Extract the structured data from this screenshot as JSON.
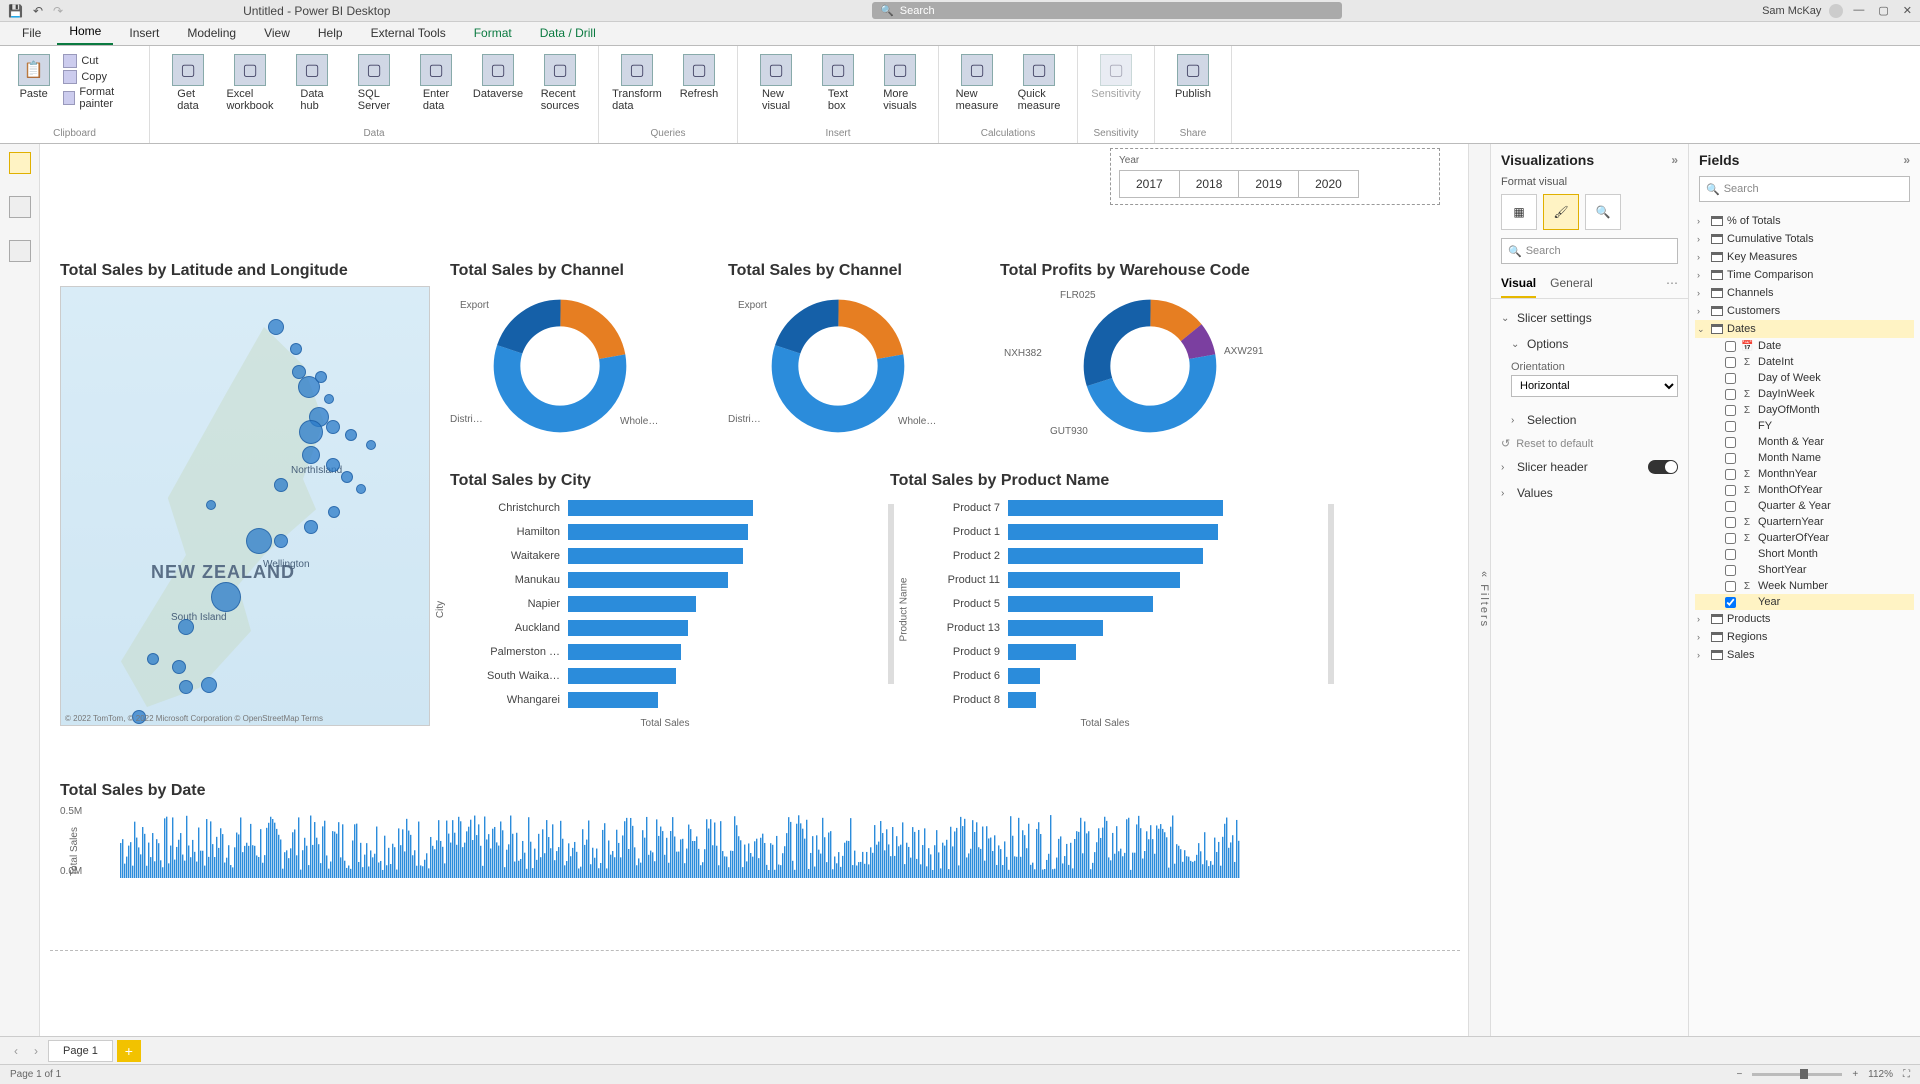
{
  "title": "Untitled - Power BI Desktop",
  "search_placeholder": "Search",
  "user": "Sam McKay",
  "menu": [
    "File",
    "Home",
    "Insert",
    "Modeling",
    "View",
    "Help",
    "External Tools",
    "Format",
    "Data / Drill"
  ],
  "menu_active": 1,
  "clipboard": {
    "paste": "Paste",
    "cut": "Cut",
    "copy": "Copy",
    "fp": "Format painter",
    "label": "Clipboard"
  },
  "data_grp": {
    "items": [
      "Get data",
      "Excel workbook",
      "Data hub",
      "SQL Server",
      "Enter data",
      "Dataverse",
      "Recent sources"
    ],
    "label": "Data"
  },
  "queries": {
    "items": [
      "Transform data",
      "Refresh"
    ],
    "label": "Queries"
  },
  "insert": {
    "items": [
      "New visual",
      "Text box",
      "More visuals"
    ],
    "label": "Insert"
  },
  "calc": {
    "items": [
      "New measure",
      "Quick measure"
    ],
    "label": "Calculations"
  },
  "sens": {
    "items": [
      "Sensitivity"
    ],
    "label": "Sensitivity"
  },
  "share": {
    "items": [
      "Publish"
    ],
    "label": "Share"
  },
  "slicer": {
    "label": "Year",
    "years": [
      "2017",
      "2018",
      "2019",
      "2020"
    ]
  },
  "map": {
    "title": "Total Sales by Latitude and Longitude",
    "nz": "NEW ZEALAND",
    "north": "NorthIsland",
    "south": "South Island",
    "wlg": "Wellington",
    "foot": "© 2022 TomTom, © 2022 Microsoft Corporation  © OpenStreetMap   Terms",
    "bubbles": [
      [
        215,
        40,
        16
      ],
      [
        235,
        62,
        12
      ],
      [
        238,
        85,
        14
      ],
      [
        248,
        100,
        22
      ],
      [
        260,
        90,
        12
      ],
      [
        268,
        112,
        10
      ],
      [
        258,
        130,
        20
      ],
      [
        250,
        145,
        24
      ],
      [
        272,
        140,
        14
      ],
      [
        290,
        148,
        12
      ],
      [
        310,
        158,
        10
      ],
      [
        250,
        168,
        18
      ],
      [
        272,
        178,
        14
      ],
      [
        220,
        198,
        14
      ],
      [
        286,
        190,
        12
      ],
      [
        300,
        202,
        10
      ],
      [
        150,
        218,
        10
      ],
      [
        198,
        254,
        26
      ],
      [
        220,
        254,
        14
      ],
      [
        250,
        240,
        14
      ],
      [
        273,
        225,
        12
      ],
      [
        165,
        310,
        30
      ],
      [
        125,
        340,
        16
      ],
      [
        92,
        372,
        12
      ],
      [
        118,
        380,
        14
      ],
      [
        125,
        400,
        14
      ],
      [
        148,
        398,
        16
      ],
      [
        78,
        430,
        14
      ]
    ]
  },
  "donut1": {
    "title": "Total Sales by Channel",
    "labels": [
      "Export",
      "Whole…",
      "Distri…"
    ],
    "slices": [
      [
        22,
        "#e67e22"
      ],
      [
        58,
        "#2b8cdb"
      ],
      [
        20,
        "#1560a8"
      ]
    ]
  },
  "donut2": {
    "title": "Total Sales by Channel",
    "labels": [
      "Export",
      "Whole…",
      "Distri…"
    ],
    "slices": [
      [
        22,
        "#e67e22"
      ],
      [
        58,
        "#2b8cdb"
      ],
      [
        20,
        "#1560a8"
      ]
    ]
  },
  "donut3": {
    "title": "Total Profits by Warehouse Code",
    "labels": [
      "FLR025",
      "AXW291",
      "GUT930",
      "NXH382"
    ],
    "slices": [
      [
        14,
        "#e67e22"
      ],
      [
        8,
        "#7b3fa0"
      ],
      [
        48,
        "#2b8cdb"
      ],
      [
        30,
        "#1560a8"
      ]
    ]
  },
  "city": {
    "title": "Total Sales by City",
    "axis": "Total Sales",
    "vaxis": "City",
    "rows": [
      [
        "Christchurch",
        185
      ],
      [
        "Hamilton",
        180
      ],
      [
        "Waitakere",
        175
      ],
      [
        "Manukau",
        160
      ],
      [
        "Napier",
        128
      ],
      [
        "Auckland",
        120
      ],
      [
        "Palmerston …",
        113
      ],
      [
        "South Waika…",
        108
      ],
      [
        "Whangarei",
        90
      ]
    ]
  },
  "product": {
    "title": "Total Sales by Product Name",
    "axis": "Total Sales",
    "vaxis": "Product Name",
    "rows": [
      [
        "Product 7",
        215
      ],
      [
        "Product 1",
        210
      ],
      [
        "Product 2",
        195
      ],
      [
        "Product 11",
        172
      ],
      [
        "Product 5",
        145
      ],
      [
        "Product 13",
        95
      ],
      [
        "Product 9",
        68
      ],
      [
        "Product 6",
        32
      ],
      [
        "Product 8",
        28
      ]
    ]
  },
  "dates": {
    "title": "Total Sales by Date",
    "ymax": "0.5M",
    "ymin": "0.0M",
    "vaxis": "Total Sales"
  },
  "viz": {
    "title": "Visualizations",
    "sub": "Format visual",
    "search": "Search",
    "tabs": [
      "Visual",
      "General"
    ],
    "tab_on": 0,
    "s1": "Slicer settings",
    "s2": "Options",
    "orientation_label": "Orientation",
    "orientation": "Horizontal",
    "s3": "Selection",
    "reset": "Reset to default",
    "s4": "Slicer header",
    "s5": "Values"
  },
  "fields": {
    "title": "Fields",
    "search": "Search",
    "tables": [
      {
        "name": "% of Totals",
        "exp": false
      },
      {
        "name": "Cumulative Totals",
        "exp": false
      },
      {
        "name": "Key Measures",
        "exp": false
      },
      {
        "name": "Time Comparison",
        "exp": false
      },
      {
        "name": "Channels",
        "exp": false
      },
      {
        "name": "Customers",
        "exp": false
      },
      {
        "name": "Dates",
        "exp": true,
        "fields": [
          {
            "name": "Date",
            "sigma": false,
            "cal": true
          },
          {
            "name": "DateInt",
            "sigma": true
          },
          {
            "name": "Day of Week",
            "sigma": false
          },
          {
            "name": "DayInWeek",
            "sigma": true
          },
          {
            "name": "DayOfMonth",
            "sigma": true
          },
          {
            "name": "FY",
            "sigma": false
          },
          {
            "name": "Month & Year",
            "sigma": false
          },
          {
            "name": "Month Name",
            "sigma": false
          },
          {
            "name": "MonthnYear",
            "sigma": true
          },
          {
            "name": "MonthOfYear",
            "sigma": true
          },
          {
            "name": "Quarter & Year",
            "sigma": false
          },
          {
            "name": "QuarternYear",
            "sigma": true
          },
          {
            "name": "QuarterOfYear",
            "sigma": true
          },
          {
            "name": "Short Month",
            "sigma": false
          },
          {
            "name": "ShortYear",
            "sigma": false
          },
          {
            "name": "Week Number",
            "sigma": true
          },
          {
            "name": "Year",
            "sigma": false,
            "checked": true
          }
        ]
      },
      {
        "name": "Products",
        "exp": false
      },
      {
        "name": "Regions",
        "exp": false
      },
      {
        "name": "Sales",
        "exp": false
      }
    ]
  },
  "filters_tab": "Filters",
  "page": {
    "name": "Page 1"
  },
  "status": {
    "left": "Page 1 of 1",
    "zoom": "112%"
  }
}
